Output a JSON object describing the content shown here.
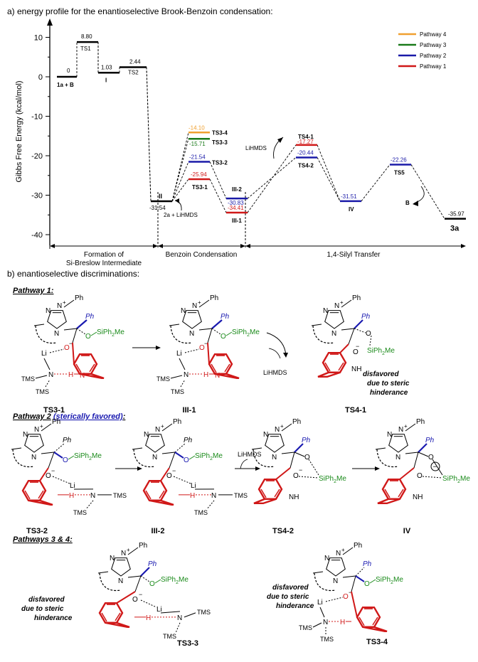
{
  "colors": {
    "pathway4": "#f0a030",
    "pathway3": "#1a7a1a",
    "pathway2": "#1a1aa8",
    "pathway1": "#d01818",
    "green_text": "#1a8a1a",
    "blue_text": "#1a1ab0",
    "red_struct": "#d01818"
  },
  "section_a": {
    "title": "a) energy profile for the enantioselective Brook-Benzoin condensation:",
    "ylabel": "Gibbs Free Energy (kcal/mol)",
    "yticks": [
      "10",
      "0",
      "-10",
      "-20",
      "-30",
      "-40"
    ],
    "legend": [
      "Pathway 4",
      "Pathway 3",
      "Pathway 2",
      "Pathway 1"
    ],
    "regions": {
      "r1_line1": "Formation of",
      "r1_line2": "Si-Breslow Intermediate",
      "r2": "Benzoin Condensation",
      "r3": "1,4-Silyl Transfer"
    },
    "notes": {
      "lihmds_up": "LiHMDS",
      "lihmds_down": "2a + LiHMDS",
      "b": "B"
    }
  },
  "chart_data": {
    "type": "energy-profile",
    "ylabel": "Gibbs Free Energy (kcal/mol)",
    "ylim": [
      -42,
      12
    ],
    "yticks": [
      10,
      0,
      -10,
      -20,
      -30,
      -40
    ],
    "legend_position": "top-right",
    "states": [
      {
        "label": "1a + B",
        "value": 0,
        "value_text": "0",
        "pathway": "common"
      },
      {
        "label": "TS1",
        "value": 8.8,
        "value_text": "8.80",
        "pathway": "common"
      },
      {
        "label": "I",
        "value": 1.03,
        "value_text": "1.03",
        "pathway": "common"
      },
      {
        "label": "TS2",
        "value": 2.44,
        "value_text": "2.44",
        "pathway": "common"
      },
      {
        "label": "II",
        "value": -31.54,
        "value_text": "-31.54",
        "pathway": "common"
      },
      {
        "label": "TS3-4",
        "value": -14.1,
        "value_text": "-14.10",
        "pathway": "4"
      },
      {
        "label": "TS3-3",
        "value": -15.71,
        "value_text": "-15.71",
        "pathway": "3"
      },
      {
        "label": "TS3-2",
        "value": -21.54,
        "value_text": "-21.54",
        "pathway": "2"
      },
      {
        "label": "TS3-1",
        "value": -25.94,
        "value_text": "-25.94",
        "pathway": "1"
      },
      {
        "label": "III-2",
        "value": -30.83,
        "value_text": "-30.83",
        "pathway": "2"
      },
      {
        "label": "III-1",
        "value": -34.41,
        "value_text": "-34.41",
        "pathway": "1"
      },
      {
        "label": "TS4-1",
        "value": -17.27,
        "value_text": "-17.27",
        "pathway": "1"
      },
      {
        "label": "TS4-2",
        "value": -20.44,
        "value_text": "-20.44",
        "pathway": "2"
      },
      {
        "label": "IV",
        "value": -31.51,
        "value_text": "-31.51",
        "pathway": "2"
      },
      {
        "label": "TS5",
        "value": -22.26,
        "value_text": "-22.26",
        "pathway": "2"
      },
      {
        "label": "3a",
        "value": -35.97,
        "value_text": "-35.97",
        "pathway": "common"
      }
    ]
  },
  "section_b": {
    "title": "b) enantioselective discriminations:",
    "pathway1": "Pathway 1:",
    "pathway2_prefix": "Pathway 2",
    "pathway2_paren": "(sterically favored)",
    "pathway2_colon": ":",
    "pathway34": "Pathways 3 & 4:",
    "disfavored_line1": "disfavored",
    "disfavored_line2": "due to steric",
    "disfavored_line3": "hinderance",
    "lihmds": "LiHMDS",
    "ph": "Ph",
    "siph2me": "SiPh",
    "me": "Me",
    "tms": "TMS",
    "n": "N",
    "li": "Li",
    "o": "O",
    "h": "H",
    "nh": "NH",
    "plus": "+",
    "minus": "−",
    "si_label": "SiPh",
    "labels": {
      "ts31": "TS3-1",
      "iii1": "III-1",
      "ts41": "TS4-1",
      "ts32": "TS3-2",
      "iii2": "III-2",
      "ts42": "TS4-2",
      "iv": "IV",
      "ts33": "TS3-3",
      "ts34": "TS3-4"
    }
  }
}
